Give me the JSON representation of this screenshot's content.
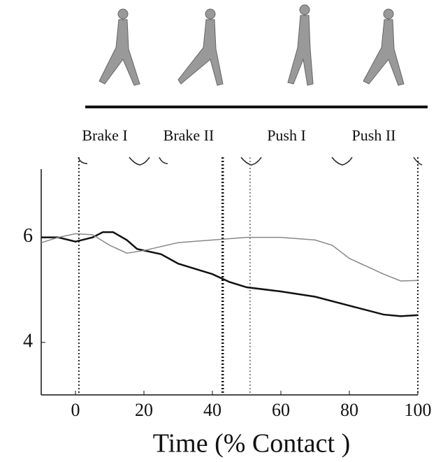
{
  "chart_data": {
    "type": "line",
    "phases": [
      "Brake I",
      "Brake II",
      "Push I",
      "Push II"
    ],
    "xlabel": "Time (% Contact )",
    "xlim": [
      -10,
      100
    ],
    "xticks": [
      0,
      20,
      40,
      60,
      80,
      100
    ],
    "ylim": [
      3,
      7.3
    ],
    "yticks": [
      4,
      6
    ],
    "vlines": [
      1,
      43,
      51,
      100
    ],
    "series": [
      {
        "color": "#111111",
        "x": [
          -10,
          -5,
          0,
          5,
          8,
          11,
          15,
          18,
          25,
          30,
          40,
          45,
          50,
          60,
          70,
          80,
          90,
          95,
          100
        ],
        "values": [
          6.0,
          6.0,
          5.92,
          6.0,
          6.1,
          6.1,
          5.95,
          5.78,
          5.68,
          5.5,
          5.3,
          5.15,
          5.05,
          4.97,
          4.87,
          4.7,
          4.53,
          4.5,
          4.52
        ]
      },
      {
        "color": "#888888",
        "x": [
          -10,
          -5,
          0,
          5,
          10,
          15,
          20,
          30,
          40,
          50,
          60,
          70,
          75,
          80,
          90,
          95,
          100
        ],
        "values": [
          5.9,
          6.0,
          6.07,
          6.05,
          5.85,
          5.7,
          5.75,
          5.9,
          5.95,
          6.0,
          6.0,
          5.95,
          5.85,
          5.6,
          5.3,
          5.17,
          5.18
        ]
      }
    ]
  }
}
